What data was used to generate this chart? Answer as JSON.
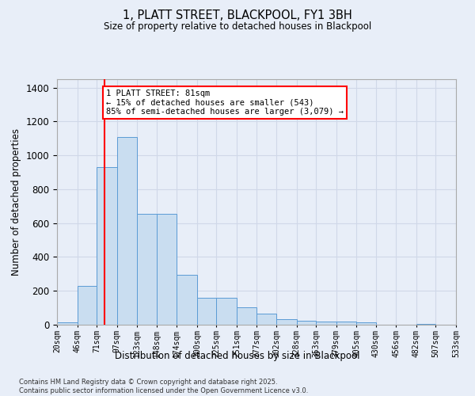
{
  "title": "1, PLATT STREET, BLACKPOOL, FY1 3BH",
  "subtitle": "Size of property relative to detached houses in Blackpool",
  "xlabel": "Distribution of detached houses by size in Blackpool",
  "ylabel": "Number of detached properties",
  "footnote": "Contains HM Land Registry data © Crown copyright and database right 2025.\nContains public sector information licensed under the Open Government Licence v3.0.",
  "bar_color": "#c9ddf0",
  "bar_edge_color": "#5b9bd5",
  "grid_color": "#d0d8e8",
  "background_color": "#e8eef8",
  "annotation_text": "1 PLATT STREET: 81sqm\n← 15% of detached houses are smaller (543)\n85% of semi-detached houses are larger (3,079) →",
  "red_line_x": 81,
  "bin_edges": [
    20,
    46,
    71,
    97,
    123,
    148,
    174,
    200,
    225,
    251,
    277,
    302,
    328,
    353,
    379,
    405,
    430,
    456,
    482,
    507,
    533
  ],
  "bar_heights": [
    15,
    230,
    930,
    1110,
    655,
    655,
    295,
    160,
    160,
    105,
    65,
    35,
    25,
    20,
    20,
    15,
    0,
    0,
    5,
    0
  ],
  "ylim": [
    0,
    1450
  ],
  "yticks": [
    0,
    200,
    400,
    600,
    800,
    1000,
    1200,
    1400
  ]
}
